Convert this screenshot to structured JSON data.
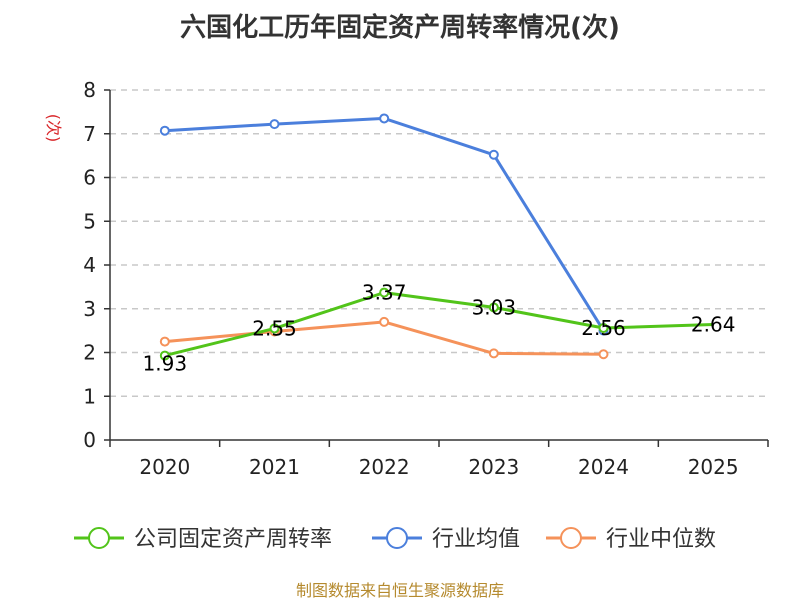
{
  "chart_data": {
    "type": "line",
    "title": "六国化工历年固定资产周转率情况(次)",
    "ylabel": "(次)",
    "xlabel": "",
    "categories": [
      "2020",
      "2021",
      "2022",
      "2023",
      "2024",
      "2025"
    ],
    "ylim": [
      0,
      8
    ],
    "yticks": [
      0,
      1,
      2,
      3,
      4,
      5,
      6,
      7,
      8
    ],
    "grid": true,
    "legend_position": "bottom",
    "series": [
      {
        "name": "公司固定资产周转率",
        "color": "#52c41a",
        "values": [
          1.93,
          2.55,
          3.37,
          3.03,
          2.56,
          2.64
        ],
        "labels": [
          "1.93",
          "2.55",
          "3.37",
          "3.03",
          "2.56",
          "2.64"
        ],
        "markers": [
          true,
          true,
          true,
          true,
          true,
          false
        ]
      },
      {
        "name": "行业均值",
        "color": "#4b7fdc",
        "values": [
          7.07,
          7.22,
          7.35,
          6.52,
          2.5,
          null
        ]
      },
      {
        "name": "行业中位数",
        "color": "#f5925a",
        "values": [
          2.25,
          2.48,
          2.7,
          1.98,
          1.96,
          null
        ]
      }
    ]
  },
  "source": "制图数据来自恒生聚源数据库"
}
